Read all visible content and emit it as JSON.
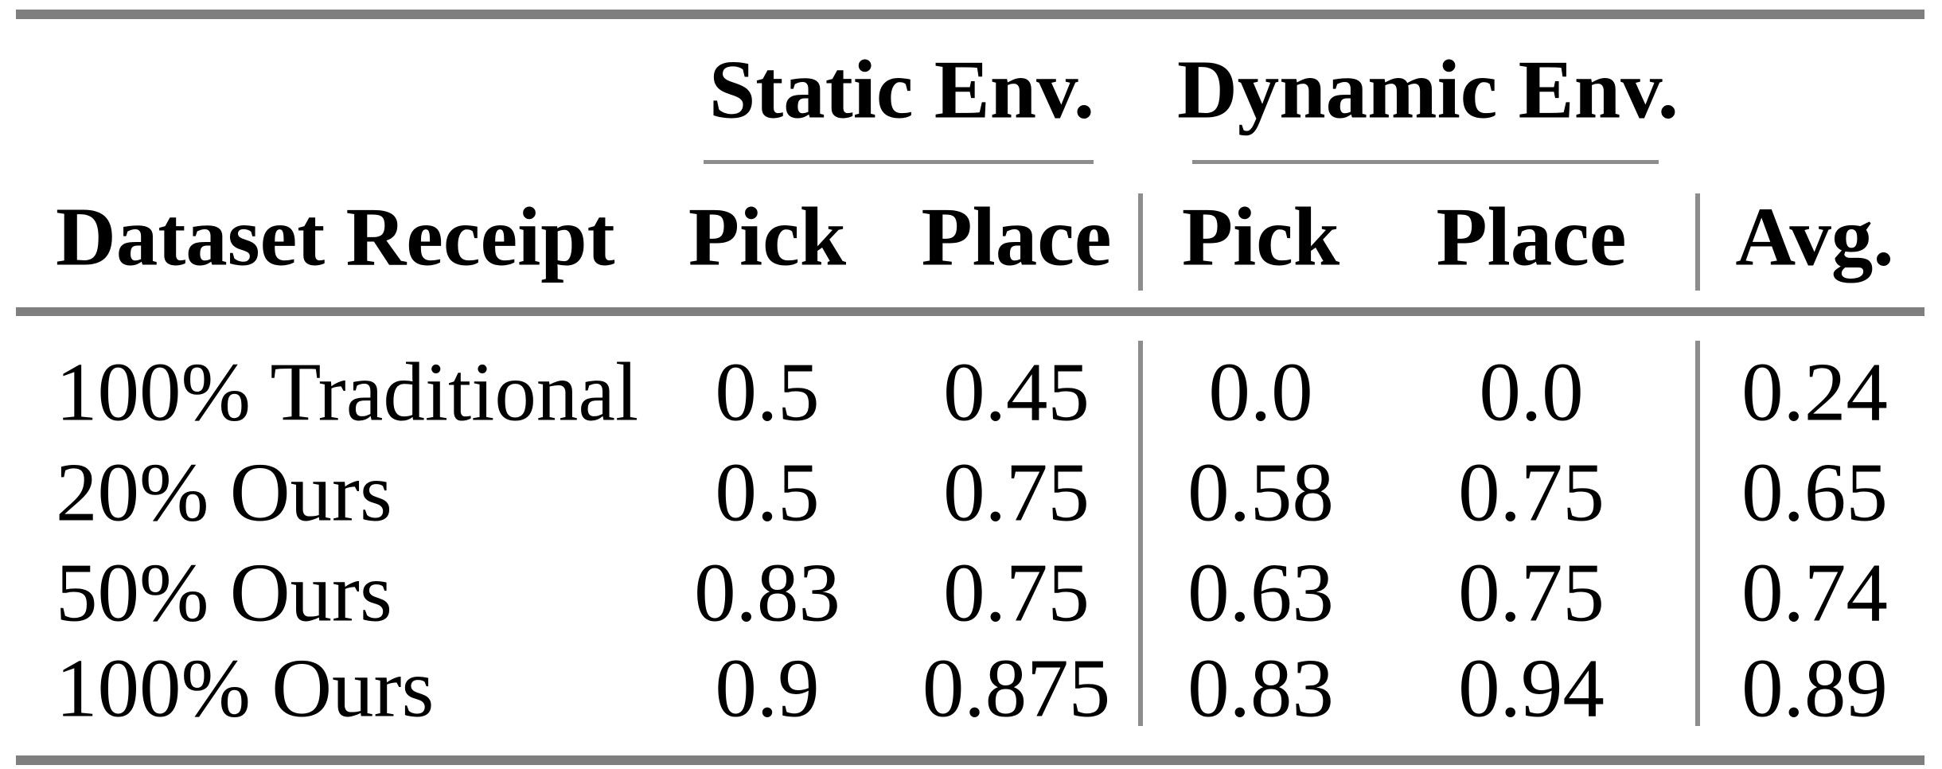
{
  "table": {
    "groups": [
      {
        "label": "Static Env."
      },
      {
        "label": "Dynamic Env."
      }
    ],
    "columns": {
      "label": "Dataset Receipt",
      "static_pick": "Pick",
      "static_place": "Place",
      "dynamic_pick": "Pick",
      "dynamic_place": "Place",
      "avg": "Avg."
    },
    "rows": [
      {
        "label": "100% Traditional",
        "static_pick": "0.5",
        "static_place": "0.45",
        "dynamic_pick": "0.0",
        "dynamic_place": "0.0",
        "avg": "0.24"
      },
      {
        "label": "20% Ours",
        "static_pick": "0.5",
        "static_place": "0.75",
        "dynamic_pick": "0.58",
        "dynamic_place": "0.75",
        "avg": "0.65"
      },
      {
        "label": "50% Ours",
        "static_pick": "0.83",
        "static_place": "0.75",
        "dynamic_pick": "0.63",
        "dynamic_place": "0.75",
        "avg": "0.74"
      },
      {
        "label": "100% Ours",
        "static_pick": "0.9",
        "static_place": "0.875",
        "dynamic_pick": "0.83",
        "dynamic_place": "0.94",
        "avg": "0.89"
      }
    ]
  },
  "colors": {
    "background": "#ffffff",
    "text": "#000000",
    "thick_rule": "#7f7f7f",
    "thin_rule": "#8d8d8d"
  }
}
